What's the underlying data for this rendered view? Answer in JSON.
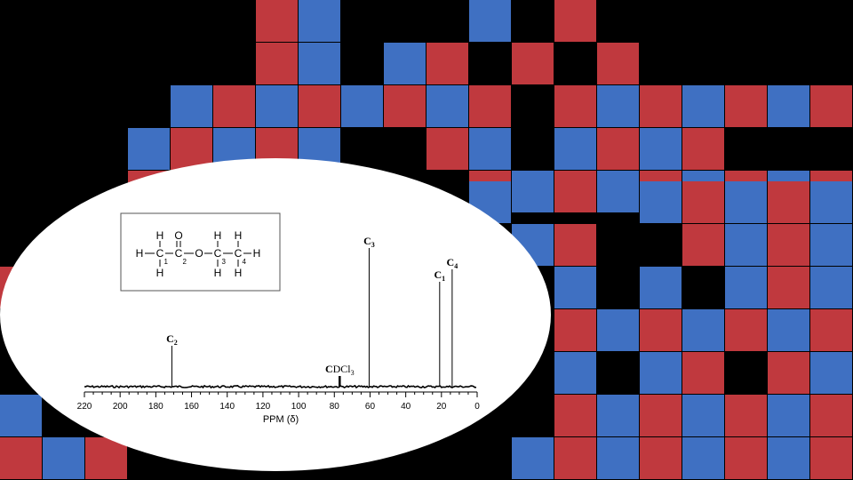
{
  "colors": {
    "background": "#000000",
    "tile_red": "#c0393e",
    "tile_blue": "#3f70c2",
    "panel": "#ffffff",
    "ink": "#000000"
  },
  "mosaic_rows": [
    "......rb...b.r........r",
    "......rb.br.r.r.....b.b",
    "....brbrbrbr.rbrbrbrbrb",
    "...brbrb..rb.brbr...r.b",
    "...rbr..b..rbrbrbrbrbrb",
    ".....................b.",
    ".....................rb",
    ".......................",
    ".......................",
    ".......................",
    ".......................",
    ".......................",
    ".......................",
    ".......................",
    ".......................",
    ".......................",
    ".......................",
    "......................."
  ],
  "chart_data": {
    "type": "line",
    "xlabel": "PPM (δ)",
    "xlim": [
      220,
      0
    ],
    "xticks": [
      "220",
      "200",
      "180",
      "160",
      "140",
      "120",
      "100",
      "80",
      "60",
      "40",
      "20",
      "0"
    ],
    "peaks": [
      {
        "name": "C",
        "sub": "2",
        "ppm": 171,
        "height": 0.23
      },
      {
        "name": "C",
        "sub": "DCl",
        "sub2": "3",
        "ppm": 77,
        "height": 0.06
      },
      {
        "name": "C",
        "sub": "3",
        "ppm": 60.5,
        "height": 0.78
      },
      {
        "name": "C",
        "sub": "1",
        "ppm": 21,
        "height": 0.59
      },
      {
        "name": "C",
        "sub": "4",
        "ppm": 14,
        "height": 0.66
      }
    ],
    "structure": {
      "atoms": {
        "H": "H",
        "C": "C",
        "O": "O"
      },
      "carbon_numbers": [
        "1",
        "2",
        "3",
        "4"
      ]
    }
  }
}
